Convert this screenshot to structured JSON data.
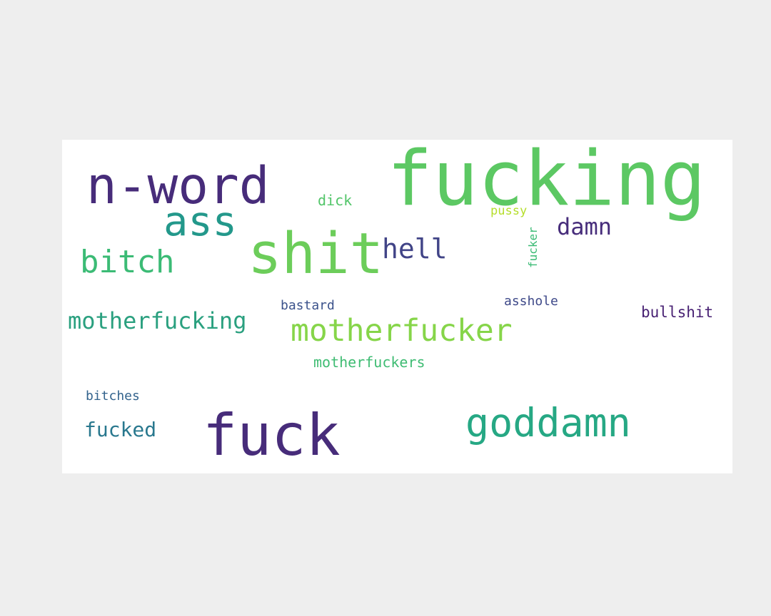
{
  "chart_data": {
    "type": "wordcloud",
    "title": "",
    "palette": "viridis",
    "background": "#ffffff",
    "words": [
      {
        "text": "fucking",
        "color": "#5cc863"
      },
      {
        "text": "n-word",
        "color": "#472c7a"
      },
      {
        "text": "shit",
        "color": "#6ccd5a"
      },
      {
        "text": "fuck",
        "color": "#472c7a"
      },
      {
        "text": "goddamn",
        "color": "#26a884"
      },
      {
        "text": "ass",
        "color": "#23988b"
      },
      {
        "text": "motherfucker",
        "color": "#86d549"
      },
      {
        "text": "bitch",
        "color": "#3bbb75"
      },
      {
        "text": "hell",
        "color": "#414487"
      },
      {
        "text": "damn",
        "color": "#472d7b"
      },
      {
        "text": "motherfucking",
        "color": "#2aa07f"
      },
      {
        "text": "fucked",
        "color": "#29788e"
      },
      {
        "text": "bullshit",
        "color": "#482173"
      },
      {
        "text": "motherfuckers",
        "color": "#3fbc73"
      },
      {
        "text": "dick",
        "color": "#52c569"
      },
      {
        "text": "bastard",
        "color": "#3b528b"
      },
      {
        "text": "asshole",
        "color": "#3e4989"
      },
      {
        "text": "bitches",
        "color": "#33638d"
      },
      {
        "text": "pussy",
        "color": "#b5de2b"
      },
      {
        "text": "fucker",
        "color": "#3bbb75"
      }
    ]
  }
}
